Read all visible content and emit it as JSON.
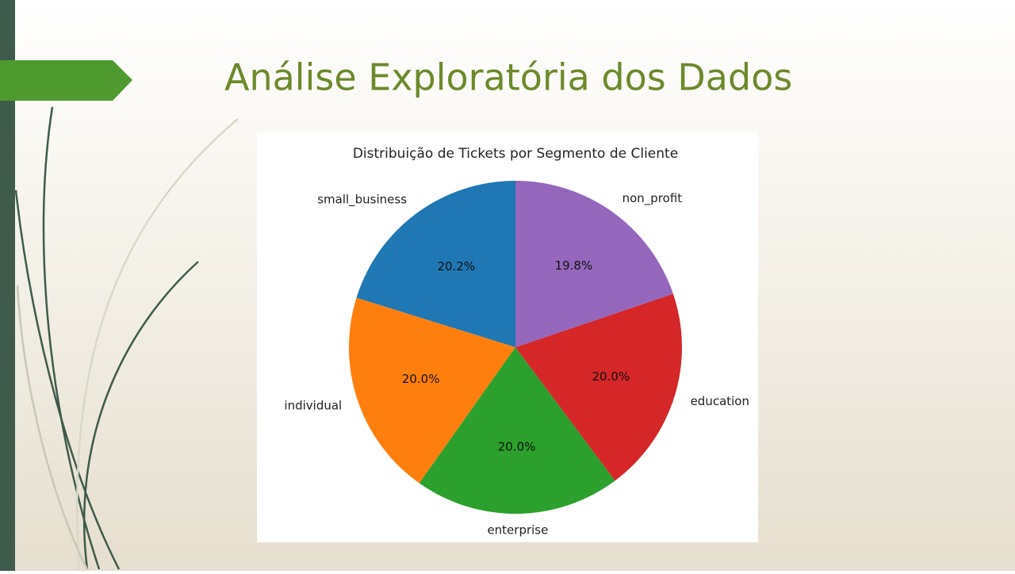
{
  "slide": {
    "title": "Análise Exploratória dos Dados"
  },
  "chart_data": {
    "type": "pie",
    "title": "Distribuição de Tickets por Segmento de Cliente",
    "categories": [
      "small_business",
      "individual",
      "enterprise",
      "education",
      "non_profit"
    ],
    "values": [
      20.2,
      20.0,
      20.0,
      20.0,
      19.8
    ],
    "value_labels": [
      "20.2%",
      "20.0%",
      "20.0%",
      "20.0%",
      "19.8%"
    ],
    "colors": [
      "#1f77b4",
      "#ff7f0e",
      "#2ca02c",
      "#d62728",
      "#9467bd"
    ]
  }
}
